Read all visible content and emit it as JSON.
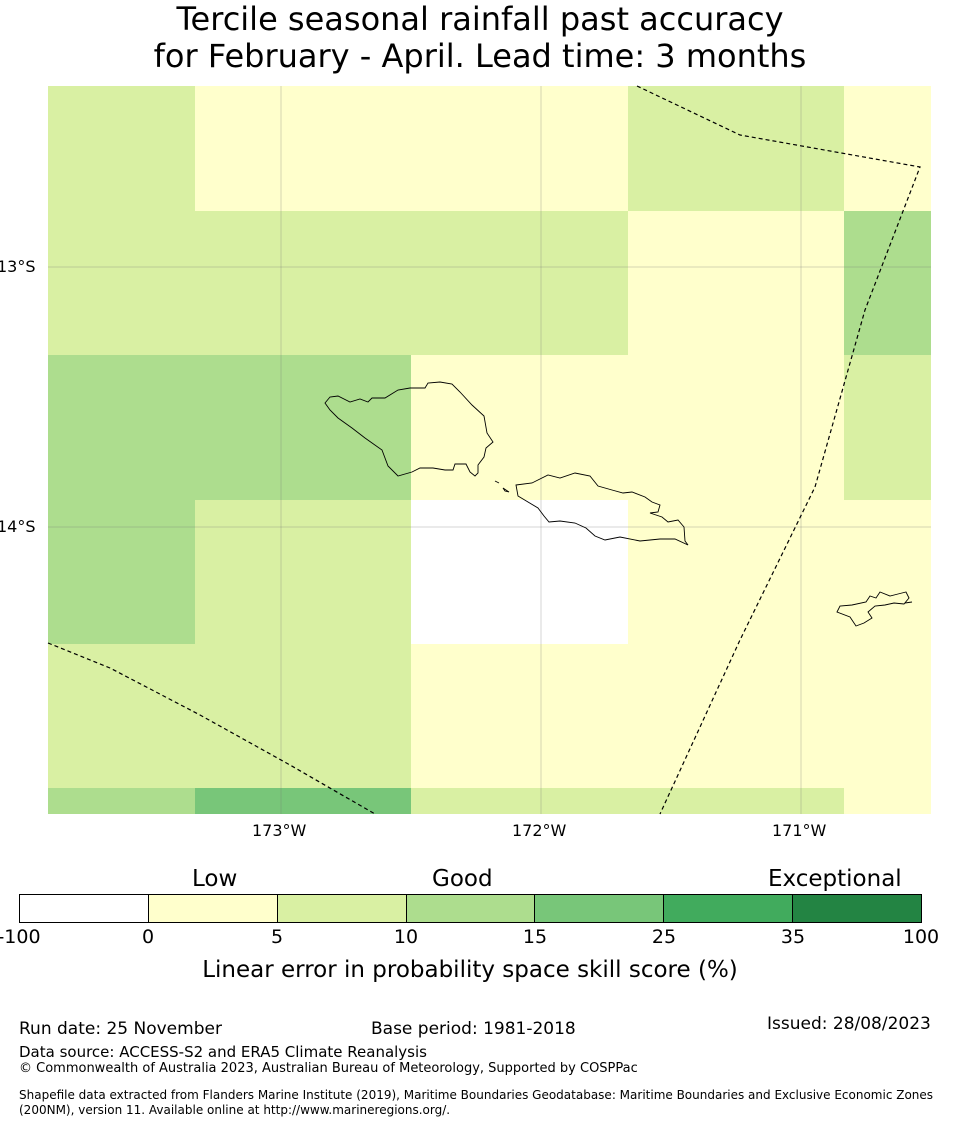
{
  "title": {
    "line1": "Tercile seasonal rainfall past accuracy",
    "line2": "for February - April. Lead time: 3 months"
  },
  "map": {
    "lat_labels": [
      "13°S",
      "14°S"
    ],
    "lon_labels": [
      "173°W",
      "172°W",
      "171°W"
    ],
    "colors": {
      "no_data": "#ffffff",
      "cat_0_5": "#ffffcc",
      "cat_5_10": "#d9f0a3",
      "cat_10_15": "#addd8e",
      "cat_15_25": "#78c679",
      "cat_25_35": "#41ab5d",
      "cat_35_100": "#238443"
    }
  },
  "colorbar": {
    "category_words": [
      "Low",
      "Good",
      "Exceptional"
    ],
    "tick_values": [
      "-100",
      "0",
      "5",
      "10",
      "15",
      "25",
      "35",
      "100"
    ],
    "segment_colors": [
      "#ffffff",
      "#ffffcc",
      "#d9f0a3",
      "#addd8e",
      "#78c679",
      "#41ab5d",
      "#238443"
    ],
    "label": "Linear error in probability space skill score (%)"
  },
  "footer": {
    "run_date": "Run date: 25 November",
    "base_period": "Base period: 1981-2018",
    "issued": "Issued: 28/08/2023",
    "data_source": "Data source: ACCESS-S2 and ERA5 Climate Reanalysis",
    "copyright": "© Commonwealth of Australia 2023, Australian Bureau of Meteorology, Supported by COSPPac",
    "shapefile_line1": "Shapefile data extracted from Flanders Marine Institute (2019), Maritime Boundaries Geodatabase: Maritime Boundaries and Exclusive Economic Zones",
    "shapefile_line2": "(200NM), version 11. Available online at http://www.marineregions.org/."
  }
}
